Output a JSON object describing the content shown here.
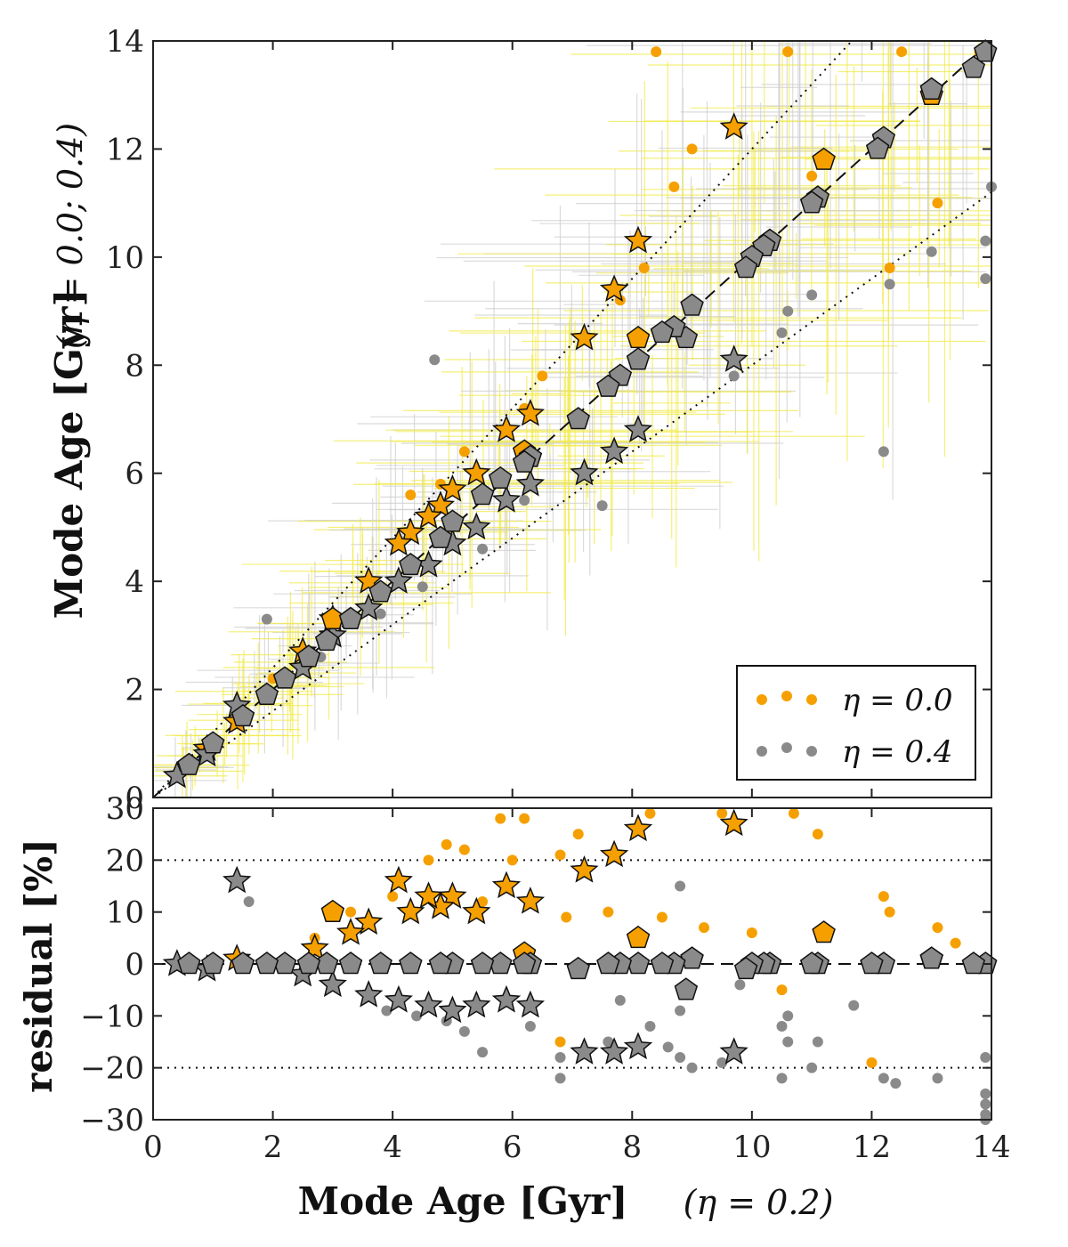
{
  "chart_data": [
    {
      "type": "scatter",
      "panel": "top",
      "xlim": [
        0,
        14
      ],
      "ylim": [
        0,
        14
      ],
      "xticks": [
        "0",
        "2",
        "4",
        "6",
        "8",
        "10",
        "12",
        "14"
      ],
      "yticks": [
        "0",
        "2",
        "4",
        "6",
        "8",
        "10",
        "12",
        "14"
      ],
      "ylabel": "Mode Age [Gyr]",
      "ylabel_note": "(η = 0.0; 0.4)",
      "grid": false,
      "legend_position": "lower-right",
      "reference_lines": [
        {
          "style": "dashed",
          "slope": 1.0
        },
        {
          "style": "dotted",
          "slope": 1.2
        },
        {
          "style": "dotted",
          "slope": 0.8
        }
      ],
      "series": [
        {
          "name": "η = 0.0",
          "color": "#f5a000",
          "dots": [
            [
              13.8,
              13.8
            ],
            [
              8.4,
              13.8
            ],
            [
              10.6,
              13.8
            ],
            [
              12.5,
              13.8
            ],
            [
              9.0,
              12.0
            ],
            [
              8.7,
              11.3
            ],
            [
              7.8,
              9.2
            ],
            [
              6.5,
              7.8
            ],
            [
              5.2,
              6.4
            ],
            [
              4.3,
              5.6
            ],
            [
              12.3,
              9.8
            ],
            [
              13.1,
              11.0
            ],
            [
              11.0,
              11.5
            ],
            [
              3.0,
              3.3
            ],
            [
              2.0,
              2.2
            ],
            [
              6.2,
              7.2
            ],
            [
              8.2,
              9.8
            ],
            [
              4.8,
              5.8
            ]
          ],
          "stars": [
            [
              9.7,
              12.4
            ],
            [
              8.1,
              10.3
            ],
            [
              7.7,
              9.4
            ],
            [
              7.2,
              8.5
            ],
            [
              6.3,
              7.1
            ],
            [
              5.9,
              6.8
            ],
            [
              5.4,
              6.0
            ],
            [
              5.0,
              5.7
            ],
            [
              4.8,
              5.4
            ],
            [
              4.6,
              5.2
            ],
            [
              4.3,
              4.9
            ],
            [
              4.1,
              4.7
            ],
            [
              3.6,
              4.0
            ],
            [
              3.0,
              3.3
            ],
            [
              2.5,
              2.7
            ],
            [
              1.4,
              1.4
            ],
            [
              0.9,
              0.9
            ]
          ],
          "pentagons": [
            [
              11.2,
              11.8
            ],
            [
              8.1,
              8.5
            ],
            [
              3.0,
              3.3
            ],
            [
              6.2,
              6.4
            ],
            [
              13.0,
              13.0
            ]
          ]
        },
        {
          "name": "η = 0.4",
          "color": "#8a8a8a",
          "dots": [
            [
              9.7,
              7.8
            ],
            [
              10.5,
              8.6
            ],
            [
              10.6,
              9.0
            ],
            [
              11.0,
              9.3
            ],
            [
              13.9,
              9.6
            ],
            [
              13.9,
              10.3
            ],
            [
              12.3,
              9.5
            ],
            [
              13.0,
              10.1
            ],
            [
              4.7,
              8.1
            ],
            [
              1.9,
              3.3
            ],
            [
              12.2,
              6.4
            ],
            [
              7.5,
              5.4
            ],
            [
              6.2,
              5.5
            ],
            [
              5.5,
              4.6
            ],
            [
              4.5,
              3.9
            ],
            [
              3.8,
              3.4
            ],
            [
              2.8,
              2.6
            ],
            [
              14.0,
              11.3
            ]
          ],
          "stars": [
            [
              9.7,
              8.1
            ],
            [
              8.1,
              6.8
            ],
            [
              7.7,
              6.4
            ],
            [
              7.2,
              6.0
            ],
            [
              6.3,
              5.8
            ],
            [
              5.9,
              5.5
            ],
            [
              5.4,
              5.0
            ],
            [
              5.0,
              4.7
            ],
            [
              4.6,
              4.3
            ],
            [
              4.1,
              4.0
            ],
            [
              3.6,
              3.5
            ],
            [
              3.0,
              3.0
            ],
            [
              2.5,
              2.4
            ],
            [
              1.4,
              1.7
            ],
            [
              0.9,
              0.8
            ],
            [
              0.4,
              0.4
            ]
          ],
          "pentagons": [
            [
              13.9,
              13.8
            ],
            [
              13.7,
              13.5
            ],
            [
              13.0,
              13.1
            ],
            [
              12.2,
              12.2
            ],
            [
              12.1,
              12.0
            ],
            [
              11.1,
              11.1
            ],
            [
              11.0,
              11.0
            ],
            [
              10.3,
              10.3
            ],
            [
              10.2,
              10.2
            ],
            [
              10.0,
              10.0
            ],
            [
              9.9,
              9.8
            ],
            [
              9.0,
              9.1
            ],
            [
              8.9,
              8.5
            ],
            [
              8.7,
              8.7
            ],
            [
              8.5,
              8.6
            ],
            [
              8.1,
              8.1
            ],
            [
              7.8,
              7.8
            ],
            [
              7.6,
              7.6
            ],
            [
              7.1,
              7.0
            ],
            [
              6.3,
              6.3
            ],
            [
              6.2,
              6.2
            ],
            [
              5.8,
              5.9
            ],
            [
              5.5,
              5.6
            ],
            [
              5.0,
              5.1
            ],
            [
              4.8,
              4.8
            ],
            [
              4.3,
              4.3
            ],
            [
              3.8,
              3.8
            ],
            [
              3.3,
              3.3
            ],
            [
              2.9,
              2.9
            ],
            [
              2.6,
              2.6
            ],
            [
              2.2,
              2.2
            ],
            [
              1.9,
              1.9
            ],
            [
              1.5,
              1.5
            ],
            [
              1.0,
              1.0
            ],
            [
              0.6,
              0.6
            ]
          ]
        }
      ],
      "legend": [
        {
          "label": "η = 0.0",
          "color": "#f5a000"
        },
        {
          "label": "η = 0.4",
          "color": "#8a8a8a"
        }
      ]
    },
    {
      "type": "scatter",
      "panel": "bottom",
      "xlim": [
        0,
        14
      ],
      "ylim": [
        -30,
        30
      ],
      "xticks": [
        "0",
        "2",
        "4",
        "6",
        "8",
        "10",
        "12",
        "14"
      ],
      "yticks": [
        "−30",
        "−20",
        "−10",
        "0",
        "10",
        "20",
        "30"
      ],
      "xlabel": "Mode Age [Gyr]",
      "xlabel_note": "(η = 0.2)",
      "ylabel": "residual [%]",
      "reference_lines": [
        {
          "style": "dashed",
          "y": 0
        },
        {
          "style": "dotted",
          "y": 20
        },
        {
          "style": "dotted",
          "y": -20
        }
      ],
      "series": [
        {
          "name": "η = 0.0",
          "color": "#f5a000",
          "dots": [
            [
              5.8,
              28
            ],
            [
              6.2,
              28
            ],
            [
              4.9,
              23
            ],
            [
              5.2,
              22
            ],
            [
              4.6,
              20
            ],
            [
              6.0,
              20
            ],
            [
              6.8,
              21
            ],
            [
              7.1,
              25
            ],
            [
              8.3,
              29
            ],
            [
              9.5,
              29
            ],
            [
              10.7,
              29
            ],
            [
              11.1,
              25
            ],
            [
              12.2,
              13
            ],
            [
              12.3,
              10
            ],
            [
              13.1,
              7
            ],
            [
              13.4,
              4
            ],
            [
              7.6,
              10
            ],
            [
              6.9,
              9
            ],
            [
              8.5,
              9
            ],
            [
              9.2,
              7
            ],
            [
              10.0,
              6
            ],
            [
              12.0,
              -19
            ],
            [
              10.5,
              -5
            ],
            [
              6.8,
              -15
            ],
            [
              4.0,
              13
            ],
            [
              5.5,
              12
            ],
            [
              3.3,
              10
            ],
            [
              2.7,
              5
            ]
          ],
          "stars": [
            [
              9.7,
              27
            ],
            [
              8.1,
              26
            ],
            [
              7.7,
              21
            ],
            [
              7.2,
              18
            ],
            [
              6.3,
              12
            ],
            [
              5.9,
              15
            ],
            [
              5.4,
              10
            ],
            [
              5.0,
              13
            ],
            [
              4.8,
              11
            ],
            [
              4.6,
              13
            ],
            [
              4.3,
              10
            ],
            [
              4.1,
              16
            ],
            [
              3.6,
              8
            ],
            [
              3.3,
              6
            ],
            [
              2.7,
              3
            ],
            [
              1.4,
              1
            ]
          ],
          "pentagons": [
            [
              11.2,
              6
            ],
            [
              8.1,
              5
            ],
            [
              3.0,
              10
            ],
            [
              6.2,
              2
            ],
            [
              13.0,
              1
            ],
            [
              9.0,
              1
            ]
          ]
        },
        {
          "name": "η = 0.4",
          "color": "#8a8a8a",
          "dots": [
            [
              13.9,
              -25
            ],
            [
              13.9,
              -27
            ],
            [
              13.9,
              -29
            ],
            [
              13.9,
              -30
            ],
            [
              13.9,
              -18
            ],
            [
              12.4,
              -23
            ],
            [
              12.2,
              -22
            ],
            [
              13.1,
              -22
            ],
            [
              10.5,
              -22
            ],
            [
              11.0,
              -20
            ],
            [
              11.1,
              -15
            ],
            [
              10.6,
              -10
            ],
            [
              10.5,
              -12
            ],
            [
              10.6,
              -15
            ],
            [
              11.7,
              -8
            ],
            [
              9.5,
              -19
            ],
            [
              9.0,
              -20
            ],
            [
              8.8,
              -18
            ],
            [
              8.6,
              -16
            ],
            [
              6.8,
              -22
            ],
            [
              6.8,
              -18
            ],
            [
              7.6,
              -15
            ],
            [
              8.3,
              -12
            ],
            [
              8.8,
              -9
            ],
            [
              7.8,
              -7
            ],
            [
              6.3,
              -12
            ],
            [
              5.5,
              -17
            ],
            [
              5.2,
              -13
            ],
            [
              4.9,
              -11
            ],
            [
              4.4,
              -10
            ],
            [
              3.9,
              -9
            ],
            [
              1.6,
              12
            ],
            [
              8.8,
              15
            ],
            [
              9.8,
              -4
            ]
          ],
          "stars": [
            [
              9.7,
              -17
            ],
            [
              8.1,
              -16
            ],
            [
              7.7,
              -17
            ],
            [
              7.2,
              -17
            ],
            [
              6.3,
              -8
            ],
            [
              5.9,
              -7
            ],
            [
              5.4,
              -8
            ],
            [
              5.0,
              -9
            ],
            [
              4.6,
              -8
            ],
            [
              4.1,
              -7
            ],
            [
              3.6,
              -6
            ],
            [
              3.0,
              -4
            ],
            [
              2.5,
              -2
            ],
            [
              1.4,
              16
            ],
            [
              0.9,
              -1
            ],
            [
              0.4,
              0
            ]
          ],
          "pentagons": [
            [
              13.9,
              0
            ],
            [
              13.7,
              0
            ],
            [
              13.0,
              1
            ],
            [
              12.2,
              0
            ],
            [
              12.0,
              0
            ],
            [
              11.1,
              0
            ],
            [
              11.0,
              0
            ],
            [
              10.3,
              0
            ],
            [
              10.2,
              0
            ],
            [
              10.0,
              0
            ],
            [
              9.9,
              -1
            ],
            [
              9.0,
              1
            ],
            [
              8.9,
              -5
            ],
            [
              8.7,
              0
            ],
            [
              8.5,
              0
            ],
            [
              8.1,
              0
            ],
            [
              7.8,
              0
            ],
            [
              7.6,
              0
            ],
            [
              7.1,
              -1
            ],
            [
              6.3,
              0
            ],
            [
              6.2,
              0
            ],
            [
              5.8,
              0
            ],
            [
              5.5,
              0
            ],
            [
              5.0,
              0
            ],
            [
              4.8,
              0
            ],
            [
              4.3,
              0
            ],
            [
              3.8,
              0
            ],
            [
              3.3,
              0
            ],
            [
              2.9,
              0
            ],
            [
              2.6,
              0
            ],
            [
              2.2,
              0
            ],
            [
              1.9,
              0
            ],
            [
              1.5,
              0
            ],
            [
              1.0,
              0
            ],
            [
              0.6,
              0
            ]
          ]
        }
      ]
    }
  ]
}
